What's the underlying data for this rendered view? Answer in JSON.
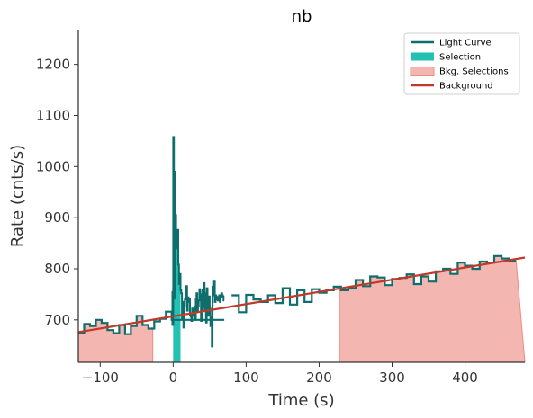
{
  "chart_data": {
    "type": "line",
    "title": "nb",
    "xlabel": "Time (s)",
    "ylabel": "Rate (cnts/s)",
    "xlim": [
      -130,
      482
    ],
    "ylim": [
      617,
      1268
    ],
    "xticks": [
      -100,
      0,
      100,
      200,
      300,
      400
    ],
    "yticks": [
      700,
      800,
      900,
      1000,
      1100,
      1200
    ],
    "xtick_labels": [
      "−100",
      "0",
      "100",
      "200",
      "300",
      "400"
    ],
    "ytick_labels": [
      "700",
      "800",
      "900",
      "1000",
      "1100",
      "1200"
    ],
    "grid": false,
    "legend_position": "top-right",
    "colors": {
      "light_curve": "#0e6e6b",
      "selection": "#22c1b4",
      "bkg_selection_fill": "#f4b6b0",
      "bkg_selection_edge": "#ec8c84",
      "background": "#c0392b"
    },
    "legend": [
      {
        "label": "Light Curve",
        "kind": "line",
        "color": "#0e6e6b"
      },
      {
        "label": "Selection",
        "kind": "patch",
        "color": "#22c1b4"
      },
      {
        "label": "Bkg. Selections",
        "kind": "patch",
        "color": "#f4b6b0"
      },
      {
        "label": "Background",
        "kind": "line",
        "color": "#c0392b"
      }
    ],
    "light_curve_coarse": {
      "bin_edges": [
        -130,
        -122,
        -114,
        -106,
        -98,
        -90,
        -82,
        -74,
        -66,
        -58,
        -50,
        -42,
        -34,
        -26,
        -18,
        -10,
        -2,
        70,
        80,
        90,
        100,
        110,
        120,
        130,
        140,
        150,
        160,
        170,
        180,
        190,
        200,
        210,
        220,
        230,
        240,
        250,
        260,
        270,
        280,
        290,
        300,
        310,
        320,
        330,
        340,
        350,
        360,
        370,
        380,
        390,
        400,
        410,
        420,
        430,
        440,
        450,
        460,
        470,
        482
      ],
      "rates_pre": [
        675,
        692,
        688,
        700,
        694,
        680,
        674,
        690,
        672,
        688,
        708,
        690,
        683,
        697,
        702,
        716,
        700
      ],
      "rates_post": [
        748,
        715,
        749,
        740,
        735,
        748,
        733,
        762,
        730,
        758,
        735,
        760,
        753,
        758,
        765,
        758,
        762,
        778,
        766,
        785,
        783,
        768,
        780,
        782,
        789,
        770,
        785,
        775,
        795,
        800,
        790,
        812,
        806,
        800,
        814,
        812,
        825,
        820,
        815
      ]
    },
    "light_curve_fine": {
      "x0": -2,
      "dx": 1,
      "rates": [
        755,
        690,
        1058,
        742,
        990,
        905,
        840,
        845,
        876,
        808,
        770,
        790,
        758,
        752,
        702,
        735,
        685,
        728,
        740,
        756,
        766,
        718,
        744,
        735,
        740,
        710,
        706,
        698,
        722,
        708,
        716,
        726,
        700,
        740,
        752,
        716,
        726,
        738,
        760,
        745,
        698,
        750,
        758,
        725,
        772,
        718,
        752,
        695,
        762,
        742,
        708,
        746,
        722,
        688,
        705,
        648,
        765,
        748,
        775,
        735,
        748,
        740,
        745,
        738,
        742,
        748,
        735,
        744,
        752,
        748,
        746,
        738
      ]
    },
    "selection": {
      "start": 0,
      "end": 10
    },
    "bkg_selections": [
      {
        "start": -130,
        "end": -28
      },
      {
        "start": 228,
        "end": 482
      }
    ],
    "background_line": {
      "x": [
        -130,
        482
      ],
      "y": [
        676,
        822
      ]
    }
  }
}
